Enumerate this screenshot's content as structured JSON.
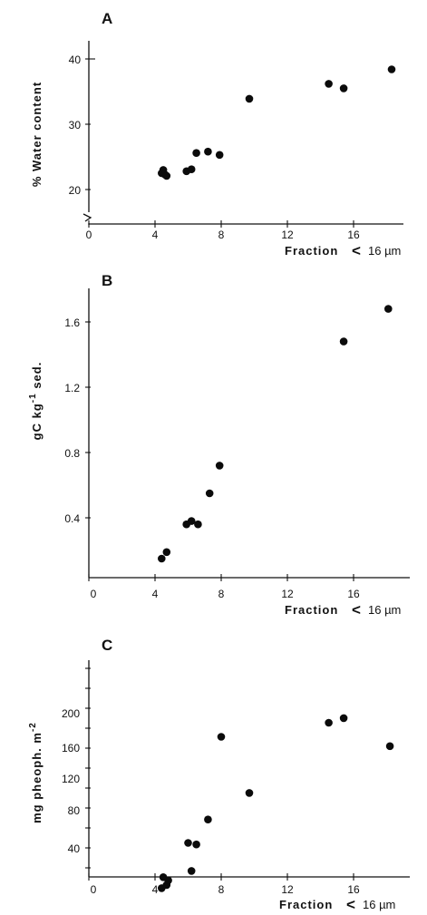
{
  "chart_data": [
    {
      "type": "scatter",
      "panel": "A",
      "title": "",
      "xlabel": "Fraction < 16 µm",
      "ylabel": "% Water content",
      "xlim": [
        0,
        19
      ],
      "ylim": [
        15,
        43
      ],
      "xticks": [
        0,
        4,
        8,
        12,
        16
      ],
      "yticks": [
        20,
        30,
        40
      ],
      "axis_break": true,
      "grid": false,
      "points": [
        {
          "x": 4.4,
          "y": 22.5
        },
        {
          "x": 4.5,
          "y": 23.0
        },
        {
          "x": 4.6,
          "y": 22.3
        },
        {
          "x": 4.7,
          "y": 22.1
        },
        {
          "x": 5.9,
          "y": 22.8
        },
        {
          "x": 6.2,
          "y": 23.1
        },
        {
          "x": 6.5,
          "y": 25.6
        },
        {
          "x": 7.2,
          "y": 25.8
        },
        {
          "x": 7.9,
          "y": 25.3
        },
        {
          "x": 9.7,
          "y": 33.9
        },
        {
          "x": 14.5,
          "y": 36.2
        },
        {
          "x": 15.4,
          "y": 35.5
        },
        {
          "x": 18.3,
          "y": 38.4
        }
      ]
    },
    {
      "type": "scatter",
      "panel": "B",
      "title": "",
      "xlabel": "Fraction < 16 µm",
      "ylabel": "gC kg-1 sed.",
      "xlim": [
        0,
        19
      ],
      "ylim": [
        0,
        1.75
      ],
      "xticks": [
        0,
        4,
        8,
        12,
        16
      ],
      "yticks": [
        0.4,
        0.8,
        1.2,
        1.6
      ],
      "grid": false,
      "points": [
        {
          "x": 4.4,
          "y": 0.15
        },
        {
          "x": 4.7,
          "y": 0.19
        },
        {
          "x": 5.9,
          "y": 0.36
        },
        {
          "x": 6.2,
          "y": 0.38
        },
        {
          "x": 6.6,
          "y": 0.36
        },
        {
          "x": 7.3,
          "y": 0.55
        },
        {
          "x": 7.9,
          "y": 0.72
        },
        {
          "x": 15.4,
          "y": 1.48
        },
        {
          "x": 18.1,
          "y": 1.68
        }
      ]
    },
    {
      "type": "scatter",
      "panel": "C",
      "title": "",
      "xlabel": "Fraction < 16 µm",
      "ylabel": "mg pheoph. m-2",
      "xlim": [
        0,
        19
      ],
      "ylim": [
        0,
        270
      ],
      "xticks": [
        0,
        4,
        8,
        12,
        16
      ],
      "yticks": [
        40,
        80,
        120,
        160,
        200
      ],
      "grid": false,
      "points": [
        {
          "x": 4.4,
          "y": 14
        },
        {
          "x": 4.5,
          "y": 28
        },
        {
          "x": 4.7,
          "y": 18
        },
        {
          "x": 4.8,
          "y": 24
        },
        {
          "x": 6.0,
          "y": 72
        },
        {
          "x": 6.2,
          "y": 36
        },
        {
          "x": 6.5,
          "y": 70
        },
        {
          "x": 7.2,
          "y": 102
        },
        {
          "x": 8.0,
          "y": 208
        },
        {
          "x": 9.7,
          "y": 136
        },
        {
          "x": 14.5,
          "y": 226
        },
        {
          "x": 15.4,
          "y": 232
        },
        {
          "x": 18.2,
          "y": 196
        }
      ]
    }
  ],
  "labels": {
    "panel_a": "A",
    "panel_b": "B",
    "panel_c": "C",
    "a_ylabel": "% Water content",
    "b_ylabel_main": "gC  kg",
    "b_ylabel_exp": "-1",
    "b_ylabel_tail": " sed.",
    "c_ylabel_main": "mg pheoph.  m",
    "c_ylabel_exp": "-2",
    "xlabel_text": "Fraction",
    "xlabel_lt": "<",
    "xlabel_unit": "16 µm",
    "a_yticks": [
      "20",
      "30",
      "40"
    ],
    "b_yticks": [
      "0.4",
      "0.8",
      "1.2",
      "1.6"
    ],
    "c_yticks": [
      "40",
      "80",
      "120",
      "160",
      "200"
    ],
    "xticks": [
      "0",
      "4",
      "8",
      "12",
      "16"
    ]
  }
}
